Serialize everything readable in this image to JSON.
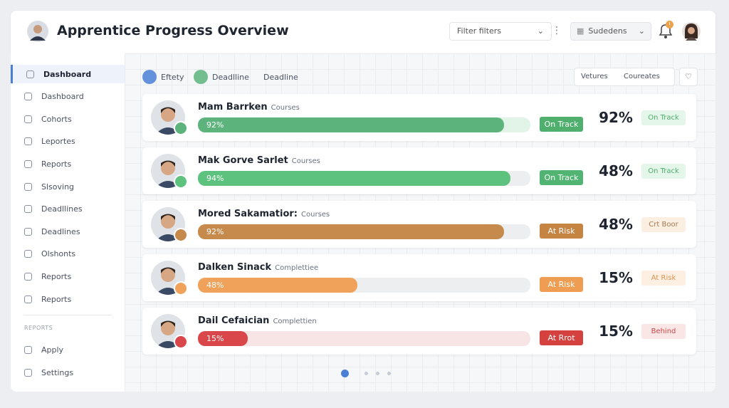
{
  "header": {
    "title": "Apprentice Progress Overview",
    "filter": "Filter filters",
    "select": "Sudedens",
    "badge": "!"
  },
  "sidebar": {
    "items": [
      "Dashboard",
      "Dashboard",
      "Cohorts",
      "Leportes",
      "Reports",
      "Slsoving",
      "Deadllines",
      "Deadlines",
      "Olshonts",
      "Reports",
      "Reports"
    ],
    "section": "REPORTS",
    "bottom": [
      "Apply",
      "Settings"
    ]
  },
  "toolbar": {
    "tabs": [
      "Eftety",
      "Deadlline",
      "Deadline"
    ],
    "buttons": [
      "Vetures",
      "Coureates"
    ]
  },
  "rows": [
    {
      "name": "Mam Barrken",
      "sub": "Courses",
      "progress": 92,
      "progress_label": "92%",
      "tag": "On Track",
      "percent": "92%",
      "status": "On Track",
      "color": "#5cb47c",
      "track": "#e2f3e7",
      "tag_color": "#4fb06e",
      "status_bg": "#e4f5e9",
      "status_fg": "#4fae6c"
    },
    {
      "name": "Mak Gorve Sarlet",
      "sub": "Courses",
      "progress": 94,
      "progress_label": "94%",
      "tag": "On Track",
      "percent": "48%",
      "status": "On Track",
      "color": "#5dc27e",
      "track": "#eceef0",
      "tag_color": "#52b472",
      "status_bg": "#e4f5e9",
      "status_fg": "#4fae6c"
    },
    {
      "name": "Mored Sakamatior:",
      "sub": "Courses",
      "progress": 92,
      "progress_label": "92%",
      "tag": "At Risk",
      "percent": "48%",
      "status": "Crt Boor",
      "color": "#c68a4c",
      "track": "#eceef0",
      "tag_color": "#c68442",
      "status_bg": "#fbefe2",
      "status_fg": "#a5794e"
    },
    {
      "name": "Dalken Sinack",
      "sub": "Complettiee",
      "progress": 48,
      "progress_label": "48%",
      "tag": "At Risk",
      "percent": "15%",
      "status": "At Risk",
      "color": "#f0a25a",
      "track": "#eceef0",
      "tag_color": "#ef9d52",
      "status_bg": "#fdf0e3",
      "status_fg": "#d9914f"
    },
    {
      "name": "Dail Cefaician",
      "sub": "Complettien",
      "progress": 15,
      "progress_label": "15%",
      "tag": "At Rrot",
      "percent": "15%",
      "status": "Behind",
      "color": "#d9474a",
      "track": "#f7e4e4",
      "tag_color": "#d5413f",
      "status_bg": "#fbe6e6",
      "status_fg": "#c8474a"
    }
  ]
}
